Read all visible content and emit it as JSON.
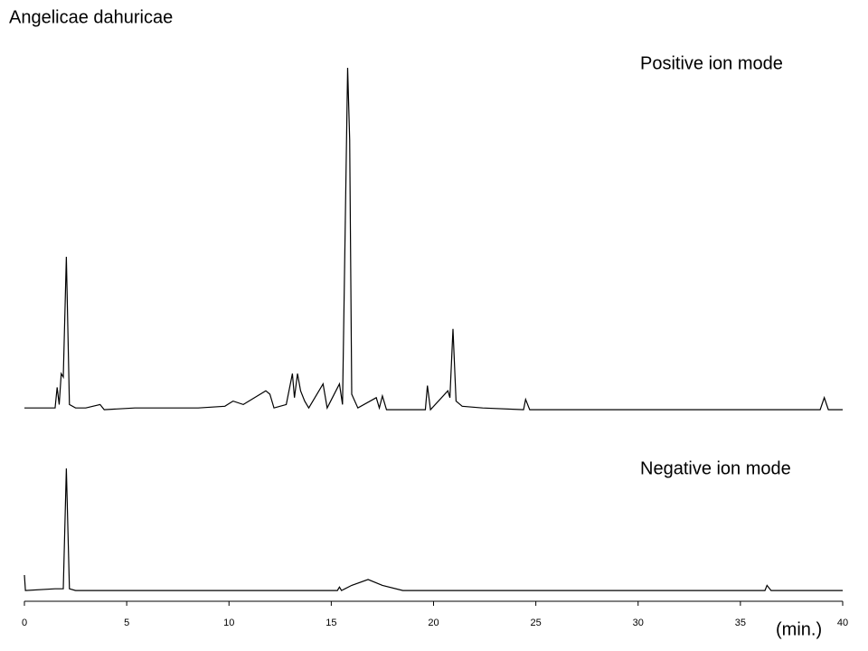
{
  "chart_data": [
    {
      "type": "line",
      "title": "Angelicae  dahuricae",
      "annotation": "Positive ion mode",
      "color": "#000000",
      "xlim": [
        0,
        40
      ],
      "ylim": [
        0,
        100
      ],
      "x": [
        0,
        1.5,
        1.6,
        1.7,
        1.8,
        1.9,
        2.05,
        2.2,
        2.5,
        3.0,
        3.7,
        3.9,
        5.4,
        8.5,
        9.8,
        10.2,
        10.7,
        11.8,
        12.0,
        12.2,
        12.8,
        13.1,
        13.2,
        13.35,
        13.5,
        13.7,
        13.9,
        14.6,
        14.8,
        15.4,
        15.55,
        15.8,
        15.9,
        16.0,
        16.3,
        17.2,
        17.35,
        17.5,
        17.7,
        19.6,
        19.7,
        19.85,
        20.7,
        20.8,
        20.95,
        21.1,
        21.4,
        22.4,
        24.4,
        24.5,
        24.7,
        28,
        35,
        38.9,
        39.1,
        39.3,
        40
      ],
      "values": [
        1,
        1,
        7,
        2,
        11,
        10,
        45,
        2,
        1,
        1,
        2,
        0.5,
        1,
        1,
        1.5,
        3,
        2,
        6,
        5,
        1,
        2,
        11,
        4,
        11,
        6,
        3,
        1,
        8,
        1,
        8,
        2,
        100,
        79,
        5,
        1,
        4,
        1,
        4.5,
        0.5,
        0.5,
        7.5,
        0.5,
        6,
        4,
        24,
        3,
        1.5,
        1,
        0.5,
        3.5,
        0.5,
        0.5,
        0.5,
        0.5,
        4,
        0.5,
        0.5
      ]
    },
    {
      "type": "line",
      "annotation": "Negative ion mode",
      "xlabel": "(min.)",
      "color": "#000000",
      "xlim": [
        0,
        40
      ],
      "ylim": [
        0,
        100
      ],
      "xticks": [
        0,
        5,
        10,
        15,
        20,
        25,
        30,
        35,
        40
      ],
      "x": [
        0,
        0.05,
        1.5,
        1.9,
        2.05,
        2.2,
        2.5,
        10,
        15.3,
        15.4,
        15.5,
        16,
        16.8,
        17.5,
        18.5,
        30,
        36.2,
        36.3,
        36.5,
        40
      ],
      "values": [
        5,
        0.5,
        1,
        1,
        36,
        1,
        0.5,
        0.5,
        0.5,
        1.5,
        0.5,
        2,
        3.7,
        2,
        0.5,
        0.5,
        0.5,
        2,
        0.5,
        0.5
      ]
    }
  ]
}
